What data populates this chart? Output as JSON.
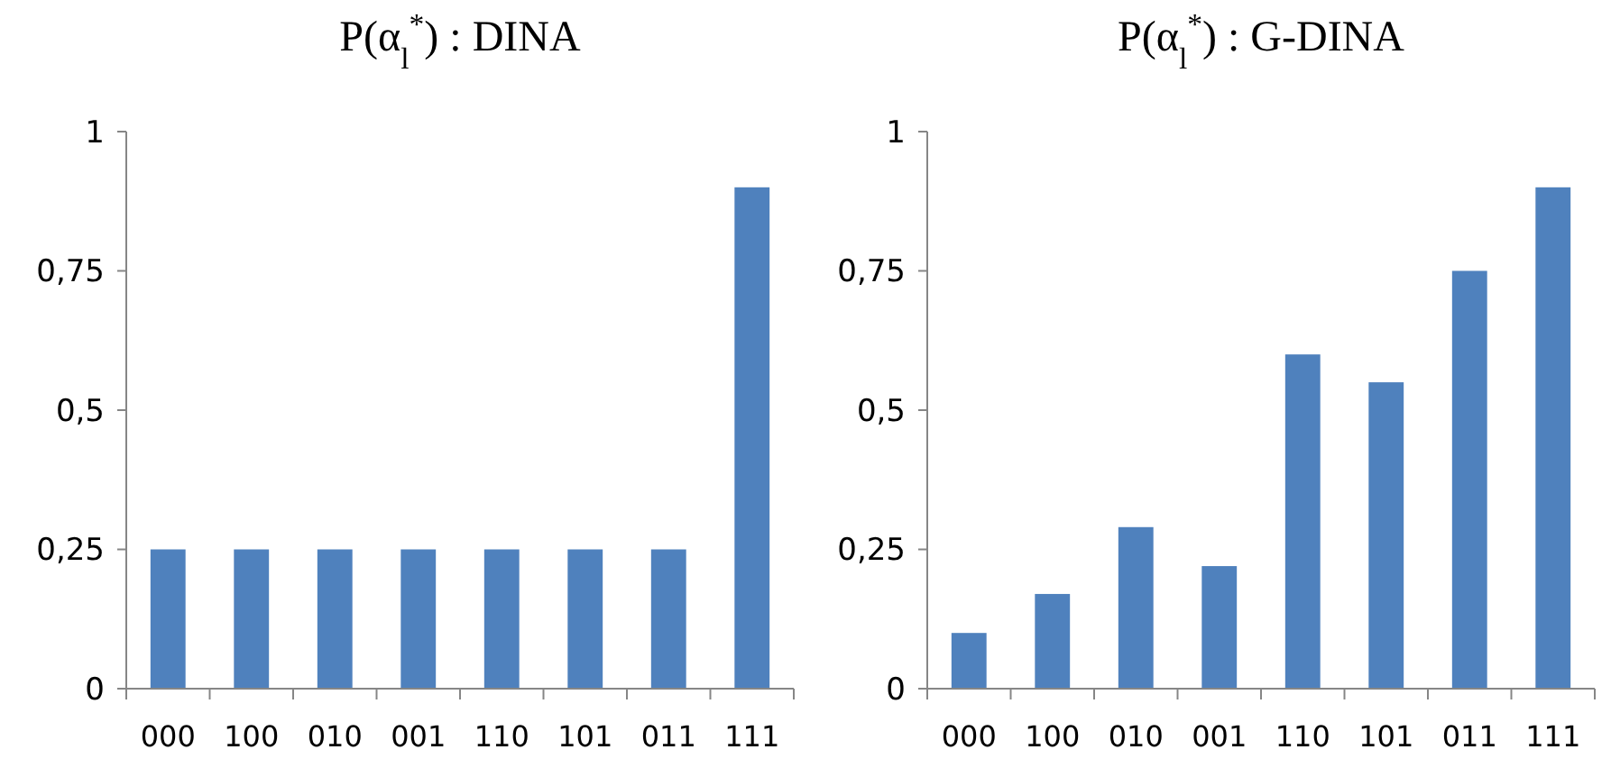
{
  "chart_data": [
    {
      "type": "bar",
      "title": "P(α$_{l}$$^{*}$) : DINA",
      "categories": [
        "000",
        "100",
        "010",
        "001",
        "110",
        "101",
        "011",
        "111"
      ],
      "values": [
        0.25,
        0.25,
        0.25,
        0.25,
        0.25,
        0.25,
        0.25,
        0.9
      ],
      "color": "#4f81bd",
      "ylim": [
        0,
        1
      ],
      "yticks": [
        {
          "value": 0,
          "label": "0"
        },
        {
          "value": 0.25,
          "label": "0,25"
        },
        {
          "value": 0.5,
          "label": "0,5"
        },
        {
          "value": 0.75,
          "label": "0,75"
        },
        {
          "value": 1,
          "label": "1"
        }
      ],
      "grid": false
    },
    {
      "type": "bar",
      "title": "P(α$_{l}$$^{*}$) : G-DINA",
      "categories": [
        "000",
        "100",
        "010",
        "001",
        "110",
        "101",
        "011",
        "111"
      ],
      "values": [
        0.1,
        0.17,
        0.29,
        0.22,
        0.6,
        0.55,
        0.75,
        0.9
      ],
      "color": "#4f81bd",
      "ylim": [
        0,
        1
      ],
      "yticks": [
        {
          "value": 0,
          "label": "0"
        },
        {
          "value": 0.25,
          "label": "0,25"
        },
        {
          "value": 0.5,
          "label": "0,5"
        },
        {
          "value": 0.75,
          "label": "0,75"
        },
        {
          "value": 1,
          "label": "1"
        }
      ],
      "grid": false
    }
  ]
}
